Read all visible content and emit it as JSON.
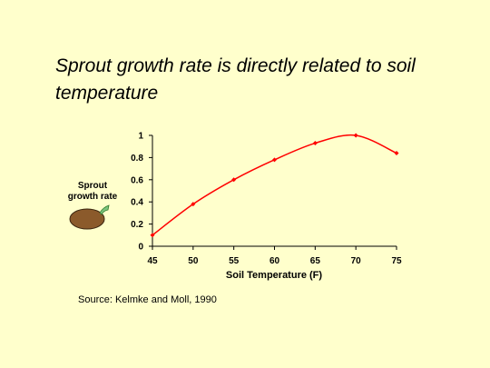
{
  "title": "Sprout growth rate is directly related to soil temperature",
  "source": "Source: Kelmke and Moll, 1990",
  "illustration": {
    "label_line1": "Sprout",
    "label_line2": "growth rate",
    "icon": "potato-sprout-icon",
    "colors": {
      "potato": "#8b5a2b",
      "sprout": "#7cc47c"
    }
  },
  "colors": {
    "background": "#ffffcc",
    "series": "#ff0000"
  },
  "chart_data": {
    "type": "line",
    "xlabel": "Soil Temperature (F)",
    "ylabel": "",
    "xlim": [
      45,
      75
    ],
    "ylim": [
      0,
      1
    ],
    "x_ticks": [
      "45",
      "50",
      "55",
      "60",
      "65",
      "70",
      "75"
    ],
    "y_ticks": [
      "0",
      "0.2",
      "0.4",
      "0.6",
      "0.8",
      "1"
    ],
    "series": [
      {
        "x": [
          45,
          50,
          55,
          60,
          65,
          70,
          75
        ],
        "y": [
          0.1,
          0.38,
          0.6,
          0.78,
          0.93,
          1.0,
          0.84
        ]
      }
    ],
    "grid": false
  }
}
